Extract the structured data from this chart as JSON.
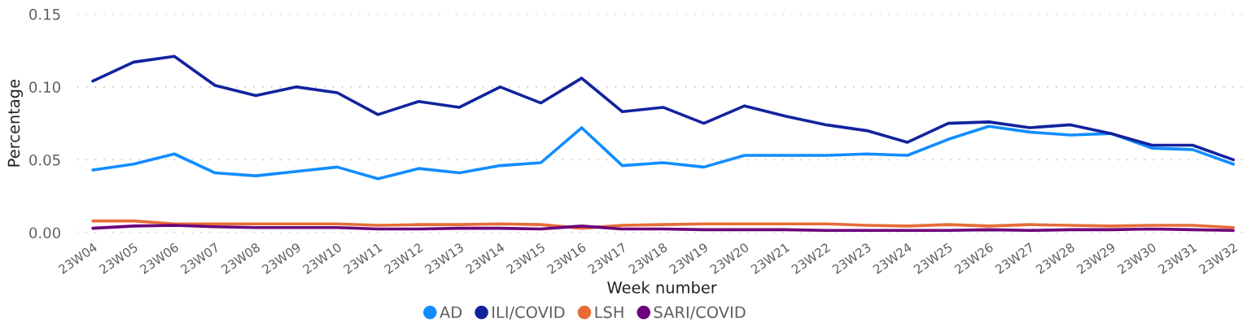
{
  "chart_data": {
    "type": "line",
    "xlabel": "Week number",
    "ylabel": "Percentage",
    "categories": [
      "23W04",
      "23W05",
      "23W06",
      "23W07",
      "23W08",
      "23W09",
      "23W10",
      "23W11",
      "23W12",
      "23W13",
      "23W14",
      "23W15",
      "23W16",
      "23W17",
      "23W18",
      "23W19",
      "23W20",
      "23W21",
      "23W22",
      "23W23",
      "23W24",
      "23W25",
      "23W26",
      "23W27",
      "23W28",
      "23W29",
      "23W30",
      "23W31",
      "23W32"
    ],
    "series": [
      {
        "name": "AD",
        "color": "#118dff",
        "values": [
          0.043,
          0.047,
          0.054,
          0.041,
          0.039,
          0.042,
          0.045,
          0.037,
          0.044,
          0.041,
          0.046,
          0.048,
          0.072,
          0.046,
          0.048,
          0.045,
          0.053,
          0.053,
          0.053,
          0.054,
          0.053,
          0.064,
          0.073,
          0.069,
          0.067,
          0.068,
          0.058,
          0.057,
          0.047
        ]
      },
      {
        "name": "ILI/COVID",
        "color": "#12239e",
        "values": [
          0.104,
          0.117,
          0.121,
          0.101,
          0.094,
          0.1,
          0.096,
          0.081,
          0.09,
          0.086,
          0.1,
          0.089,
          0.106,
          0.083,
          0.086,
          0.075,
          0.087,
          0.08,
          0.074,
          0.07,
          0.062,
          0.075,
          0.076,
          0.072,
          0.074,
          0.068,
          0.06,
          0.06,
          0.05
        ]
      },
      {
        "name": "LSH",
        "color": "#e66c37",
        "values": [
          0.008,
          0.008,
          0.006,
          0.006,
          0.006,
          0.006,
          0.006,
          0.005,
          0.0055,
          0.0055,
          0.006,
          0.0055,
          0.003,
          0.005,
          0.0055,
          0.006,
          0.006,
          0.006,
          0.006,
          0.005,
          0.0045,
          0.0055,
          0.0045,
          0.0055,
          0.005,
          0.0045,
          0.005,
          0.005,
          0.0035
        ]
      },
      {
        "name": "SARI/COVID",
        "color": "#6b007b",
        "values": [
          0.003,
          0.0045,
          0.005,
          0.004,
          0.0035,
          0.0035,
          0.0035,
          0.0025,
          0.0025,
          0.003,
          0.003,
          0.0025,
          0.0045,
          0.0025,
          0.0025,
          0.002,
          0.002,
          0.002,
          0.0015,
          0.0015,
          0.0015,
          0.0015,
          0.002,
          0.0015,
          0.002,
          0.002,
          0.0025,
          0.002,
          0.0015
        ]
      }
    ],
    "ylim": [
      0,
      0.15
    ],
    "yticks": [
      {
        "value": 0,
        "label": "0.00"
      },
      {
        "value": 0.05,
        "label": "0.05"
      },
      {
        "value": 0.1,
        "label": "0.10"
      },
      {
        "value": 0.15,
        "label": "0.15"
      }
    ],
    "grid": "y",
    "legend": "bottom",
    "line_style": "solid"
  }
}
